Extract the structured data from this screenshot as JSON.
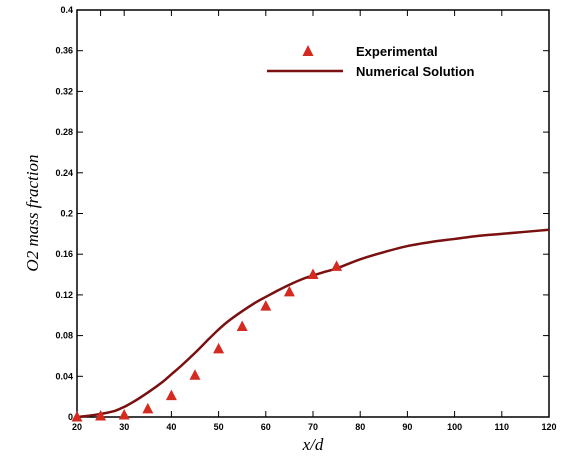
{
  "chart_data": {
    "type": "line",
    "title": "",
    "xlabel": "x/d",
    "ylabel": "O2 mass fraction",
    "xlim": [
      20,
      120
    ],
    "ylim": [
      0,
      0.4
    ],
    "xticks": [
      20,
      25,
      30,
      40,
      50,
      60,
      70,
      80,
      90,
      100,
      110,
      120
    ],
    "xtick_labels": [
      "20",
      "",
      "30",
      "40",
      "50",
      "60",
      "70",
      "80",
      "90",
      "100",
      "110",
      "120"
    ],
    "yticks": [
      0,
      0.04,
      0.08,
      0.12,
      0.16,
      0.2,
      0.24,
      0.28,
      0.32,
      0.36,
      0.4
    ],
    "ytick_labels": [
      "0",
      "0.04",
      "0.08",
      "0.12",
      "0.16",
      "0.2",
      "0.24",
      "0.28",
      "0.32",
      "0.36",
      "0.4"
    ],
    "grid": false,
    "legend_position": "top-right",
    "series": [
      {
        "name": "Experimental",
        "style": "markers",
        "marker": "triangle",
        "color": "#d42a20",
        "x": [
          20,
          25,
          30,
          35,
          40,
          45,
          50,
          55,
          60,
          65,
          70,
          75
        ],
        "y": [
          0.0,
          0.001,
          0.002,
          0.008,
          0.021,
          0.041,
          0.067,
          0.089,
          0.109,
          0.123,
          0.14,
          0.148
        ]
      },
      {
        "name": "Numerical Solution",
        "style": "line",
        "color": "#7a1010",
        "x": [
          20,
          22,
          25,
          28,
          30,
          32,
          35,
          38,
          40,
          42,
          45,
          48,
          50,
          52,
          55,
          58,
          60,
          62,
          65,
          68,
          70,
          72,
          75,
          80,
          85,
          90,
          95,
          100,
          105,
          110,
          115,
          120
        ],
        "y": [
          0.0,
          0.001,
          0.003,
          0.006,
          0.01,
          0.015,
          0.024,
          0.034,
          0.042,
          0.05,
          0.063,
          0.077,
          0.086,
          0.094,
          0.104,
          0.113,
          0.118,
          0.123,
          0.13,
          0.136,
          0.139,
          0.142,
          0.146,
          0.155,
          0.162,
          0.168,
          0.172,
          0.175,
          0.178,
          0.18,
          0.182,
          0.184
        ]
      }
    ]
  }
}
